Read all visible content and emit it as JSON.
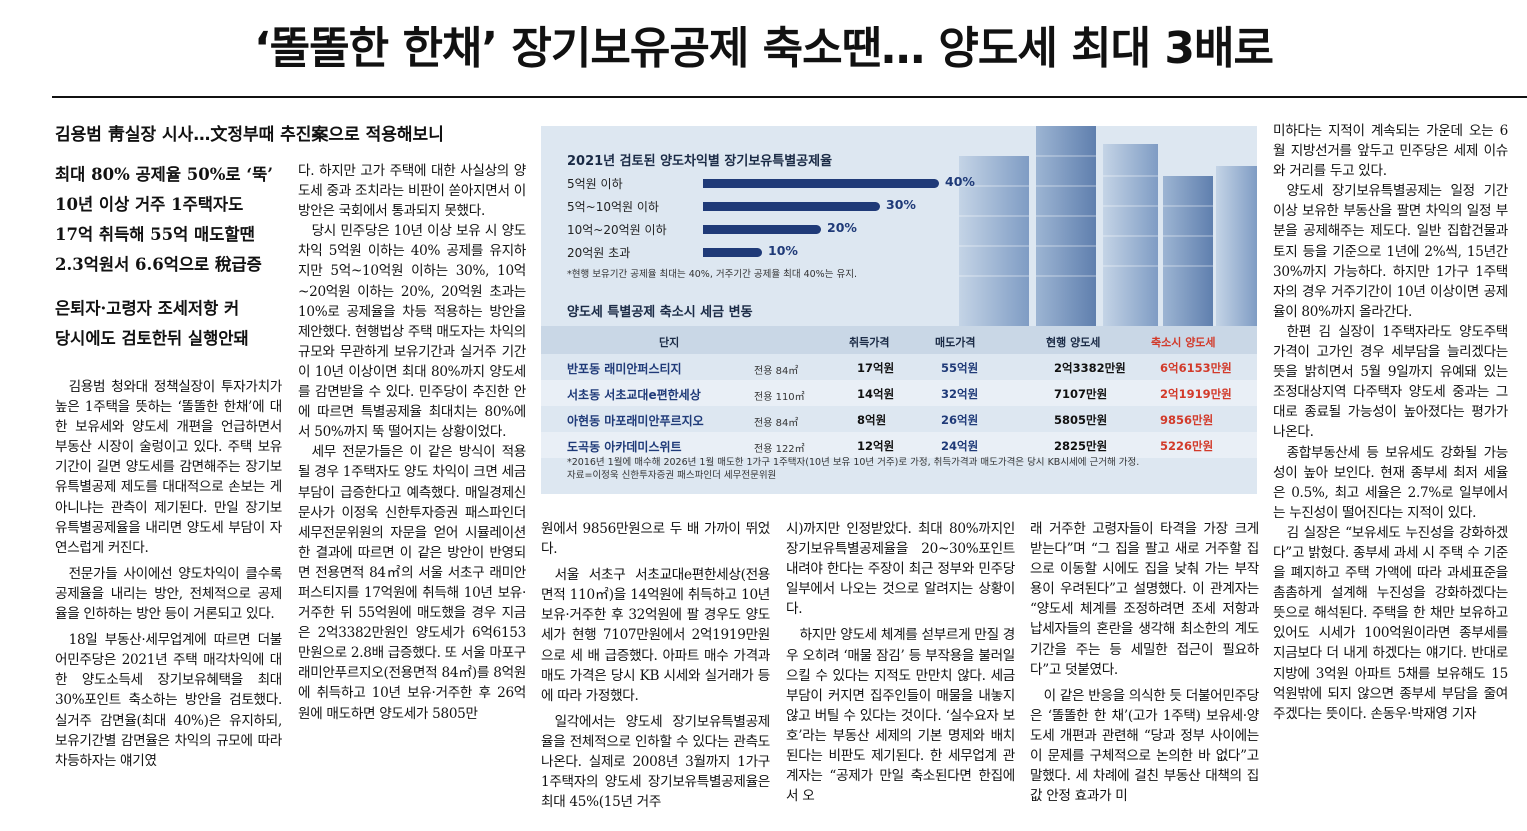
{
  "headline": "‘똘똘한 한채’ 장기보유공제 축소땐… 양도세 최대 3배로",
  "subhead": "김용범 靑실장 시사…文정부때 추진案으로 적용해보니",
  "deck": [
    "최대 80% 공제율 50%로 ‘뚝’",
    "10년 이상 거주 1주택자도",
    "17억 취득해 55억 매도할땐",
    "2.3억원서 6.6억으로 稅급증",
    "은퇴자·고령자 조세저항 커",
    "당시에도 검토한뒤 실행안돼"
  ],
  "infographic": {
    "title1": "2021년 검토된 양도차익별 장기보유특별공제율",
    "bars": [
      {
        "label": "5억원 이하",
        "value": 40,
        "text": "40%"
      },
      {
        "label": "5억~10억원 이하",
        "value": 30,
        "text": "30%"
      },
      {
        "label": "10억~20억원 이하",
        "value": 20,
        "text": "20%"
      },
      {
        "label": "20억원 초과",
        "value": 10,
        "text": "10%"
      }
    ],
    "note1": "*현행 보유기간 공제율 최대는 40%, 거주기간 공제율 최대 40%는 유지.",
    "title2": "양도세 특별공제 축소시 세금 변동",
    "headers": [
      "단지",
      "취득가격",
      "매도가격",
      "현행 양도세",
      "축소시 양도세"
    ],
    "rows": [
      {
        "name": "반포동 래미안퍼스티지",
        "area": "전용 84㎡",
        "acq": "17억원",
        "sell": "55억원",
        "cur": "2억3382만원",
        "cut": "6억6153만원"
      },
      {
        "name": "서초동 서초교대e편한세상",
        "area": "전용 110㎡",
        "acq": "14억원",
        "sell": "32억원",
        "cur": "7107만원",
        "cut": "2억1919만원"
      },
      {
        "name": "아현동 마포래미안푸르지오",
        "area": "전용 84㎡",
        "acq": "8억원",
        "sell": "26억원",
        "cur": "5805만원",
        "cut": "9856만원"
      },
      {
        "name": "도곡동 아카데미스위트",
        "area": "전용 122㎡",
        "acq": "12억원",
        "sell": "24억원",
        "cur": "2825만원",
        "cut": "5226만원"
      }
    ],
    "foot1": "*2016년 1월에 매수해 2026년 1월 매도한 1가구 1주택자(10년 보유 10년 거주)로 가정, 취득가격과 매도가격은 당시 KB시세에 근거해 가정.",
    "foot2": "자료=이정욱 신한투자증권 패스파인더 세무전문위원"
  },
  "col1": [
    "김용범 청와대 정책실장이 투자가치가 높은 1주택을 뜻하는 ‘똘똘한 한채’에 대한 보유세와 양도세 개편을 언급하면서 부동산 시장이 술렁이고 있다. 주택 보유기간이 길면 양도세를 감면해주는 장기보유특별공제 제도를 대대적으로 손보는 게 아니냐는 관측이 제기된다. 만일 장기보유특별공제율을 내리면 양도세 부담이 자연스럽게 커진다.",
    "전문가들 사이에선 양도차익이 클수록 공제율을 내리는 방안, 전체적으로 공제율을 인하하는 방안 등이 거론되고 있다.",
    "18일 부동산·세무업계에 따르면 더불어민주당은 2021년 주택 매각차익에 대한 양도소득세 장기보유혜택을 최대 30%포인트 축소하는 방안을 검토했다. 실거주 감면율(최대 40%)은 유지하되, 보유기간별 감면율은 차익의 규모에 따라 차등하자는 얘기였"
  ],
  "col2": [
    "다. 하지만 고가 주택에 대한 사실상의 양도세 중과 조치라는 비판이 쏟아지면서 이 방안은 국회에서 통과되지 못했다.",
    "당시 민주당은 10년 이상 보유 시 양도차익 5억원 이하는 40% 공제를 유지하지만 5억~10억원 이하는 30%, 10억~20억원 이하는 20%, 20억원 초과는 10%로 공제율을 차등 적용하는 방안을 제안했다. 현행법상 주택 매도자는 차익의 규모와 무관하게 보유기간과 실거주 기간이 10년 이상이면 최대 80%까지 양도세를 감면받을 수 있다. 민주당이 추진한 안에 따르면 특별공제율 최대치는 80%에서 50%까지 뚝 떨어지는 상황이었다.",
    "세무 전문가들은 이 같은 방식이 적용될 경우 1주택자도 양도 차익이 크면 세금부담이 급증한다고 예측했다. 매일경제신문사가 이정욱 신한투자증권 패스파인더 세무전문위원의 자문을 얻어 시뮬레이션한 결과에 따르면 이 같은 방안이 반영되면 전용면적 84㎡의 서울 서초구 래미안퍼스티지를 17억원에 취득해 10년 보유·거주한 뒤 55억원에 매도했을 경우 지금은 2억3382만원인 양도세가 6억6153만원으로 2.8배 급증했다. 또 서울 마포구 래미안푸르지오(전용면적 84㎡)를 8억원에 취득하고 10년 보유·거주한 후 26억원에 매도하면 양도세가 5805만"
  ],
  "col3": [
    "원에서 9856만원으로 두 배 가까이 뛰었다.",
    "서울 서초구 서초교대e편한세상(전용면적 110㎡)을 14억원에 취득하고 10년 보유·거주한 후 32억원에 팔 경우도 양도세가 현행 7107만원에서 2억1919만원으로 세 배 급증했다. 아파트 매수 가격과 매도 가격은 당시 KB 시세와 실거래가 등에 따라 가정했다.",
    "일각에서는 양도세 장기보유특별공제율을 전체적으로 인하할 수 있다는 관측도 나온다. 실제로 2008년 3월까지 1가구 1주택자의 양도세 장기보유특별공제율은 최대 45%(15년 거주"
  ],
  "col4": [
    "시)까지만 인정받았다. 최대 80%까지인 장기보유특별공제율을 20~30%포인트 내려야 한다는 주장이 최근 정부와 민주당 일부에서 나오는 것으로 알려지는 상황이다.",
    "하지만 양도세 체계를 섣부르게 만질 경우 오히려 ‘매물 잠김’ 등 부작용을 불러일으킬 수 있다는 지적도 만만치 않다. 세금 부담이 커지면 집주인들이 매물을 내놓지 않고 버틸 수 있다는 것이다. ‘실수요자 보호’라는 부동산 세제의 기본 명제와 배치된다는 비판도 제기된다. 한 세무업계 관계자는 “공제가 만일 축소된다면 한집에서 오"
  ],
  "col5": [
    "래 거주한 고령자들이 타격을 가장 크게 받는다”며 “그 집을 팔고 새로 거주할 집으로 이동할 시에도 집을 낮춰 가는 부작용이 우려된다”고 설명했다. 이 관계자는 “양도세 체계를 조정하려면 조세 저항과 납세자들의 혼란을 생각해 최소한의 계도 기간을 주는 등 세밀한 접근이 필요하다”고 덧붙였다.",
    "이 같은 반응을 의식한 듯 더불어민주당은 ‘똘똘한 한 채’(고가 1주택) 보유세·양도세 개편과 관련해 “당과 정부 사이에는 이 문제를 구체적으로 논의한 바 없다”고 말했다. 세 차례에 걸친 부동산 대책의 집값 안정 효과가 미"
  ],
  "col6": [
    "미하다는 지적이 계속되는 가운데 오는 6월 지방선거를 앞두고 민주당은 세제 이슈와 거리를 두고 있다.",
    "양도세 장기보유특별공제는 일정 기간 이상 보유한 부동산을 팔면 차익의 일정 부분을 공제해주는 제도다. 일반 집합건물과 토지 등을 기준으로 1년에 2%씩, 15년간 30%까지 가능하다. 하지만 1가구 1주택자의 경우 거주기간이 10년 이상이면 공제율이 80%까지 올라간다.",
    "한편 김 실장이 1주택자라도 양도주택 가격이 고가인 경우 세부담을 늘리겠다는 뜻을 밝히면서 5월 9일까지 유예돼 있는 조정대상지역 다주택자 양도세 중과는 그대로 종료될 가능성이 높아졌다는 평가가 나온다.",
    "종합부동산세 등 보유세도 강화될 가능성이 높아 보인다. 현재 종부세 최저 세율은 0.5%, 최고 세율은 2.7%로 일부에서는 누진성이 떨어진다는 지적이 있다.",
    "김 실장은 “보유세도 누진성을 강화하겠다”고 밝혔다. 종부세 과세 시 주택 수 기준을 폐지하고 주택 가액에 따라 과세표준을 촘촘하게 설계해 누진성을 강화하겠다는 뜻으로 해석된다. 주택을 한 채만 보유하고 있어도 시세가 100억원이라면 종부세를 지금보다 더 내게 하겠다는 얘기다. 반대로 지방에 3억원 아파트 5채를 보유해도 15억원밖에 되지 않으면 종부세 부담을 줄여주겠다는 뜻이다. 손동우·박재영 기자"
  ]
}
